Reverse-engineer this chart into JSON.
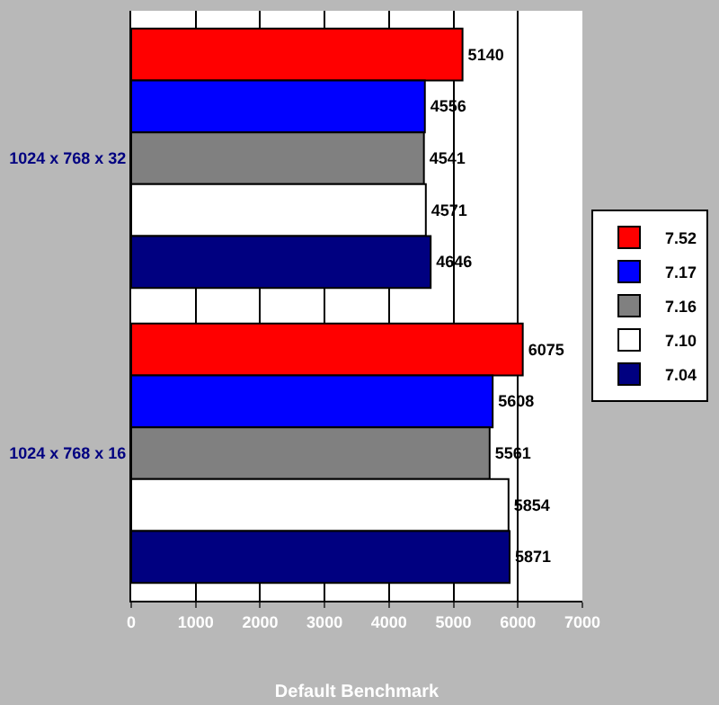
{
  "chart_data": {
    "type": "bar",
    "orientation": "horizontal",
    "xlabel": "Default Benchmark",
    "categories": [
      "1024 x 768 x 32",
      "1024 x 768 x 16"
    ],
    "series": [
      {
        "name": "7.52",
        "color": "#ff0000",
        "values": [
          5140,
          6075
        ]
      },
      {
        "name": "7.17",
        "color": "#0000ff",
        "values": [
          4556,
          5608
        ]
      },
      {
        "name": "7.16",
        "color": "#808080",
        "values": [
          4541,
          5561
        ]
      },
      {
        "name": "7.10",
        "color": "#ffffff",
        "values": [
          4571,
          5854
        ]
      },
      {
        "name": "7.04",
        "color": "#000080",
        "values": [
          4646,
          5871
        ]
      }
    ],
    "xlim": [
      0,
      7000
    ],
    "xticks": [
      0,
      1000,
      2000,
      3000,
      4000,
      5000,
      6000,
      7000
    ],
    "grid": "x",
    "legend": "right",
    "data_labels": true
  }
}
